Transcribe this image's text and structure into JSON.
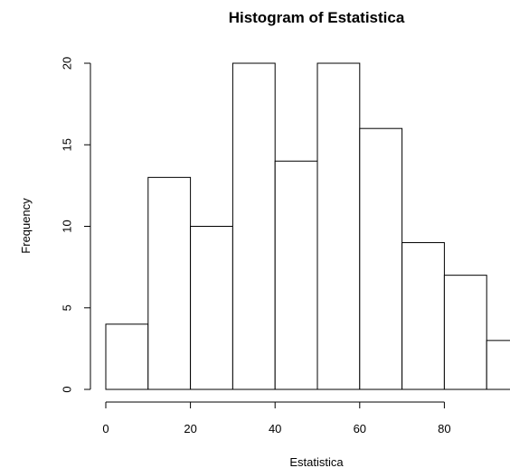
{
  "chart_data": {
    "type": "bar",
    "title": "Histogram of Estatistica",
    "xlabel": "Estatistica",
    "ylabel": "Frequency",
    "bins": [
      {
        "from": 0,
        "to": 10,
        "count": 4
      },
      {
        "from": 10,
        "to": 20,
        "count": 13
      },
      {
        "from": 20,
        "to": 30,
        "count": 10
      },
      {
        "from": 30,
        "to": 40,
        "count": 20
      },
      {
        "from": 40,
        "to": 50,
        "count": 14
      },
      {
        "from": 50,
        "to": 60,
        "count": 20
      },
      {
        "from": 60,
        "to": 70,
        "count": 16
      },
      {
        "from": 70,
        "to": 80,
        "count": 9
      },
      {
        "from": 80,
        "to": 90,
        "count": 7
      },
      {
        "from": 90,
        "to": 100,
        "count": 3
      }
    ],
    "x_ticks": [
      "0",
      "20",
      "40",
      "60",
      "80"
    ],
    "y_ticks": [
      "0",
      "5",
      "10",
      "15",
      "20"
    ],
    "xlim": [
      0,
      100
    ],
    "ylim": [
      0,
      20
    ],
    "grid": false,
    "bar_fill": "#ffffff",
    "bar_stroke": "#000000"
  }
}
